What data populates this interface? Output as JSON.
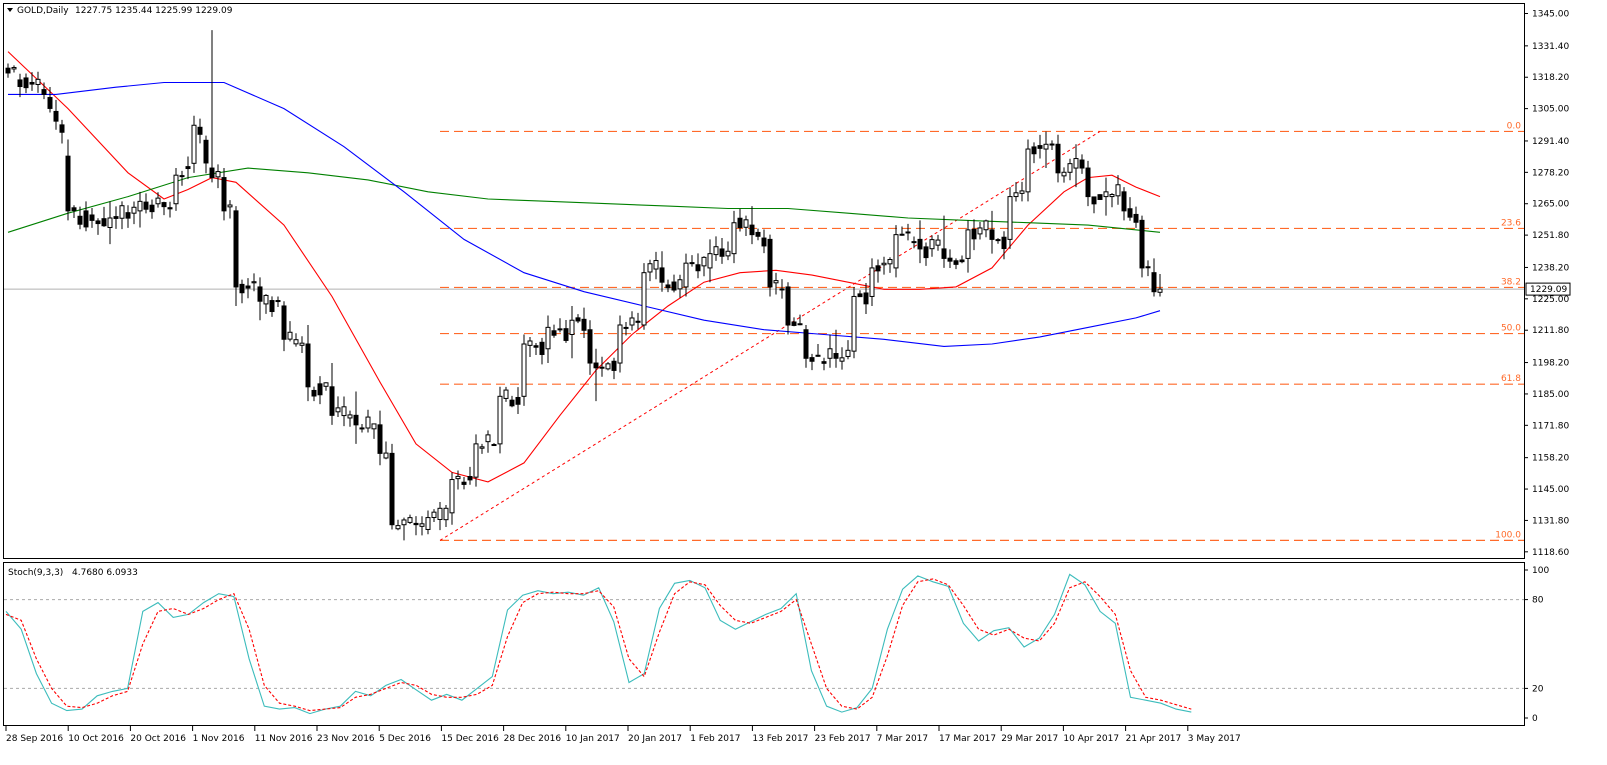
{
  "header": {
    "symbol_text": "GOLD,Daily",
    "ohlc_text": "1227.75 1235.44 1225.99 1229.09"
  },
  "stoch_header": {
    "name_text": "Stoch(9,3,3)",
    "values_text": "4.7680 6.0933"
  },
  "colors": {
    "background": "#ffffff",
    "candle_up": "#ffffff",
    "candle_down": "#000000",
    "ma_fast": "#ff0000",
    "ma_mid": "#008000",
    "ma_slow": "#0000ff",
    "fib": "#ff6a2a",
    "stoch_main": "#3cbcbc",
    "stoch_signal": "#ff0000",
    "price_marker_bg": "#ffffff"
  },
  "current_price_label": "1229.09",
  "chart_data": [
    {
      "type": "candlestick",
      "title": "GOLD,Daily",
      "price_axis_ticks": [
        "1345.00",
        "1331.40",
        "1318.20",
        "1305.00",
        "1291.40",
        "1278.20",
        "1265.00",
        "1251.80",
        "1238.20",
        "1225.00",
        "1211.80",
        "1198.20",
        "1185.00",
        "1171.80",
        "1158.20",
        "1145.00",
        "1131.80",
        "1118.60"
      ],
      "date_axis_labels": [
        "28 Sep 2016",
        "10 Oct 2016",
        "20 Oct 2016",
        "1 Nov 2016",
        "11 Nov 2016",
        "23 Nov 2016",
        "5 Dec 2016",
        "15 Dec 2016",
        "28 Dec 2016",
        "10 Jan 2017",
        "20 Jan 2017",
        "1 Feb 2017",
        "13 Feb 2017",
        "23 Feb 2017",
        "7 Mar 2017",
        "17 Mar 2017",
        "29 Mar 2017",
        "10 Apr 2017",
        "21 Apr 2017",
        "3 May 2017"
      ],
      "ylim": [
        1116,
        1349
      ],
      "last_price": 1229.09,
      "fibonacci_levels": [
        {
          "label": "0.0",
          "price": 1295.4
        },
        {
          "label": "23.6",
          "price": 1254.6
        },
        {
          "label": "38.2",
          "price": 1229.8
        },
        {
          "label": "50.0",
          "price": 1210.4
        },
        {
          "label": "61.8",
          "price": 1189.1
        },
        {
          "label": "100.0",
          "price": 1123.4
        }
      ],
      "fib_swing": {
        "low": {
          "date": "15 Dec 2016",
          "price": 1123.4
        },
        "high": {
          "date": "12 Apr 2017",
          "price": 1295.4
        }
      },
      "anchors": [
        [
          0,
          1322,
          1324,
          1318,
          1320
        ],
        [
          6,
          1313,
          1316,
          1309,
          1311
        ],
        [
          10,
          1285,
          1292,
          1258,
          1262
        ],
        [
          17,
          1255,
          1266,
          1248,
          1259
        ],
        [
          22,
          1262,
          1270,
          1255,
          1266
        ],
        [
          28,
          1265,
          1280,
          1262,
          1277
        ],
        [
          31,
          1282,
          1302,
          1278,
          1298
        ],
        [
          34,
          1280,
          1338,
          1274,
          1276
        ],
        [
          36,
          1276,
          1280,
          1258,
          1262
        ],
        [
          38,
          1262,
          1264,
          1222,
          1230
        ],
        [
          42,
          1230,
          1234,
          1216,
          1224
        ],
        [
          46,
          1222,
          1224,
          1203,
          1208
        ],
        [
          50,
          1206,
          1214,
          1182,
          1188
        ],
        [
          54,
          1188,
          1198,
          1172,
          1176
        ],
        [
          58,
          1176,
          1186,
          1164,
          1172
        ],
        [
          62,
          1172,
          1178,
          1155,
          1160
        ],
        [
          64,
          1160,
          1164,
          1128,
          1130
        ],
        [
          66,
          1130,
          1133,
          1123.4,
          1132
        ],
        [
          70,
          1128,
          1136,
          1126,
          1133
        ],
        [
          74,
          1135,
          1152,
          1130,
          1149
        ],
        [
          78,
          1150,
          1168,
          1146,
          1164
        ],
        [
          82,
          1164,
          1188,
          1160,
          1184
        ],
        [
          86,
          1184,
          1210,
          1180,
          1206
        ],
        [
          90,
          1204,
          1218,
          1198,
          1213
        ],
        [
          94,
          1210,
          1222,
          1200,
          1216
        ],
        [
          97,
          1212,
          1216,
          1193,
          1198
        ],
        [
          98,
          1198,
          1204,
          1182,
          1196
        ],
        [
          102,
          1198,
          1218,
          1194,
          1214
        ],
        [
          106,
          1214,
          1240,
          1212,
          1236
        ],
        [
          109,
          1238,
          1245,
          1228,
          1232
        ],
        [
          113,
          1230,
          1244,
          1226,
          1240
        ],
        [
          117,
          1238,
          1250,
          1232,
          1244
        ],
        [
          121,
          1244,
          1262,
          1240,
          1257
        ],
        [
          124,
          1256,
          1264,
          1248,
          1252
        ],
        [
          127,
          1250,
          1252,
          1226,
          1230
        ],
        [
          130,
          1230,
          1232,
          1210,
          1214
        ],
        [
          133,
          1212,
          1214,
          1196,
          1200
        ],
        [
          137,
          1200,
          1210,
          1196,
          1204
        ],
        [
          138,
          1202,
          1212,
          1196,
          1200
        ],
        [
          141,
          1203,
          1230,
          1200,
          1226
        ],
        [
          144,
          1226,
          1242,
          1222,
          1238
        ],
        [
          148,
          1238,
          1256,
          1234,
          1252
        ],
        [
          152,
          1250,
          1258,
          1240,
          1246
        ],
        [
          156,
          1246,
          1260,
          1238,
          1242
        ],
        [
          160,
          1242,
          1258,
          1236,
          1254
        ],
        [
          164,
          1254,
          1262,
          1244,
          1250
        ],
        [
          167,
          1250,
          1272,
          1246,
          1268
        ],
        [
          170,
          1270,
          1292,
          1266,
          1288
        ],
        [
          173,
          1288,
          1295.4,
          1280,
          1290
        ],
        [
          175,
          1290,
          1294,
          1274,
          1278
        ],
        [
          178,
          1280,
          1290,
          1272,
          1284
        ],
        [
          180,
          1280,
          1283,
          1264,
          1268
        ],
        [
          183,
          1268,
          1276,
          1260,
          1270
        ],
        [
          186,
          1270,
          1272,
          1258,
          1262
        ],
        [
          189,
          1258,
          1260,
          1234,
          1238
        ],
        [
          191,
          1236,
          1242,
          1226,
          1228
        ],
        [
          192,
          1227.75,
          1235.44,
          1225.99,
          1229.09
        ]
      ],
      "moving_averages": [
        {
          "color": "#ff0000",
          "points": [
            [
              0,
              1329
            ],
            [
              10,
              1305
            ],
            [
              20,
              1278
            ],
            [
              26,
              1267
            ],
            [
              30,
              1271
            ],
            [
              34,
              1276
            ],
            [
              38,
              1274
            ],
            [
              46,
              1256
            ],
            [
              54,
              1226
            ],
            [
              62,
              1190
            ],
            [
              68,
              1164
            ],
            [
              74,
              1152
            ],
            [
              80,
              1148
            ],
            [
              86,
              1156
            ],
            [
              92,
              1176
            ],
            [
              98,
              1195
            ],
            [
              104,
              1210
            ],
            [
              110,
              1222
            ],
            [
              116,
              1232
            ],
            [
              122,
              1236
            ],
            [
              128,
              1237
            ],
            [
              134,
              1235
            ],
            [
              140,
              1232
            ],
            [
              146,
              1229
            ],
            [
              152,
              1229
            ],
            [
              158,
              1230
            ],
            [
              164,
              1238
            ],
            [
              170,
              1256
            ],
            [
              176,
              1270
            ],
            [
              180,
              1276
            ],
            [
              184,
              1277
            ],
            [
              188,
              1272
            ],
            [
              192,
              1268
            ]
          ]
        },
        {
          "color": "#008000",
          "points": [
            [
              0,
              1253
            ],
            [
              10,
              1261
            ],
            [
              20,
              1268
            ],
            [
              30,
              1276
            ],
            [
              40,
              1280
            ],
            [
              50,
              1278
            ],
            [
              60,
              1275
            ],
            [
              70,
              1270
            ],
            [
              80,
              1267
            ],
            [
              90,
              1266
            ],
            [
              100,
              1265
            ],
            [
              110,
              1264
            ],
            [
              120,
              1263
            ],
            [
              130,
              1263
            ],
            [
              140,
              1261
            ],
            [
              150,
              1259
            ],
            [
              160,
              1258
            ],
            [
              170,
              1257
            ],
            [
              180,
              1256
            ],
            [
              192,
              1253
            ]
          ]
        },
        {
          "color": "#0000ff",
          "points": [
            [
              0,
              1311
            ],
            [
              8,
              1311
            ],
            [
              18,
              1314
            ],
            [
              26,
              1316
            ],
            [
              36,
              1316
            ],
            [
              46,
              1305
            ],
            [
              56,
              1289
            ],
            [
              66,
              1270
            ],
            [
              76,
              1250
            ],
            [
              86,
              1236
            ],
            [
              96,
              1228
            ],
            [
              106,
              1222
            ],
            [
              116,
              1216
            ],
            [
              126,
              1212
            ],
            [
              136,
              1210
            ],
            [
              146,
              1208
            ],
            [
              156,
              1205
            ],
            [
              164,
              1206
            ],
            [
              172,
              1209
            ],
            [
              180,
              1213
            ],
            [
              188,
              1217
            ],
            [
              192,
              1220
            ]
          ]
        }
      ]
    },
    {
      "type": "line",
      "title": "Stoch(9,3,3)",
      "ylim": [
        0,
        100
      ],
      "ticks": [
        "100",
        "80",
        "20",
        "0"
      ],
      "levels": [
        80,
        20
      ],
      "main_values": [
        72,
        60,
        30,
        10,
        5,
        6,
        15,
        18,
        20,
        72,
        78,
        68,
        70,
        78,
        84,
        82,
        40,
        8,
        6,
        7,
        3,
        6,
        8,
        18,
        15,
        22,
        26,
        19,
        12,
        16,
        12,
        20,
        28,
        73,
        83,
        86,
        84,
        85,
        83,
        88,
        65,
        24,
        30,
        74,
        91,
        93,
        88,
        66,
        60,
        65,
        70,
        74,
        84,
        32,
        8,
        4,
        7,
        20,
        60,
        87,
        96,
        92,
        89,
        64,
        52,
        59,
        61,
        48,
        54,
        70,
        97,
        90,
        72,
        64,
        14,
        12,
        10,
        6,
        4
      ],
      "signal_values": [
        70,
        66,
        40,
        20,
        8,
        7,
        10,
        15,
        18,
        50,
        72,
        74,
        70,
        74,
        80,
        84,
        60,
        22,
        10,
        8,
        5,
        6,
        7,
        14,
        16,
        20,
        24,
        22,
        16,
        14,
        14,
        16,
        22,
        55,
        78,
        84,
        85,
        84,
        84,
        86,
        75,
        40,
        28,
        58,
        84,
        92,
        90,
        76,
        66,
        64,
        68,
        72,
        80,
        50,
        20,
        8,
        6,
        14,
        42,
        76,
        92,
        94,
        90,
        76,
        60,
        56,
        60,
        54,
        52,
        64,
        88,
        92,
        82,
        70,
        32,
        14,
        12,
        9,
        6
      ],
      "last_values_text": "4.7680 6.0933"
    }
  ]
}
